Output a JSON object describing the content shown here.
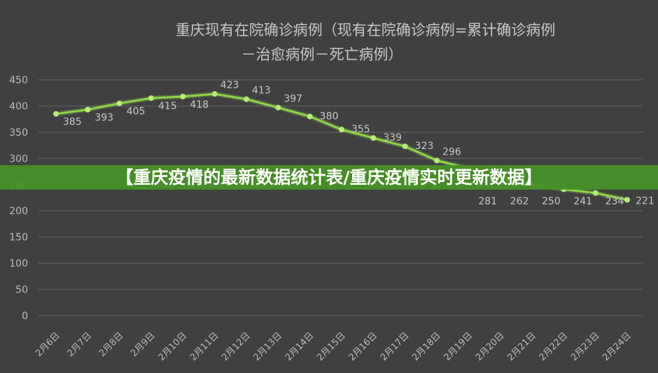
{
  "chart_data": {
    "type": "line",
    "title_line1": "重庆现有在院确诊病例（现有在院确诊病例=累计确诊病例",
    "title_line2": "－治愈病例－死亡病例）",
    "categories": [
      "2月6日",
      "2月7日",
      "2月8日",
      "2月9日",
      "2月10日",
      "2月11日",
      "2月12日",
      "2月13日",
      "2月14日",
      "2月15日",
      "2月16日",
      "2月17日",
      "2月18日",
      "2月19日",
      "2月20日",
      "2月21日",
      "2月22日",
      "2月23日",
      "2月24日"
    ],
    "values": [
      385,
      393,
      405,
      415,
      418,
      423,
      413,
      397,
      380,
      355,
      339,
      323,
      296,
      281,
      262,
      250,
      241,
      234,
      221
    ],
    "ylim": [
      0,
      450
    ],
    "yticks": [
      0,
      50,
      100,
      150,
      200,
      250,
      300,
      350,
      400,
      450
    ],
    "grid": true,
    "line_color": "#8fd44a"
  },
  "banner": {
    "text": "【重庆疫情的最新数据统计表/重庆疫情实时更新数据】",
    "color": "#46912a"
  }
}
